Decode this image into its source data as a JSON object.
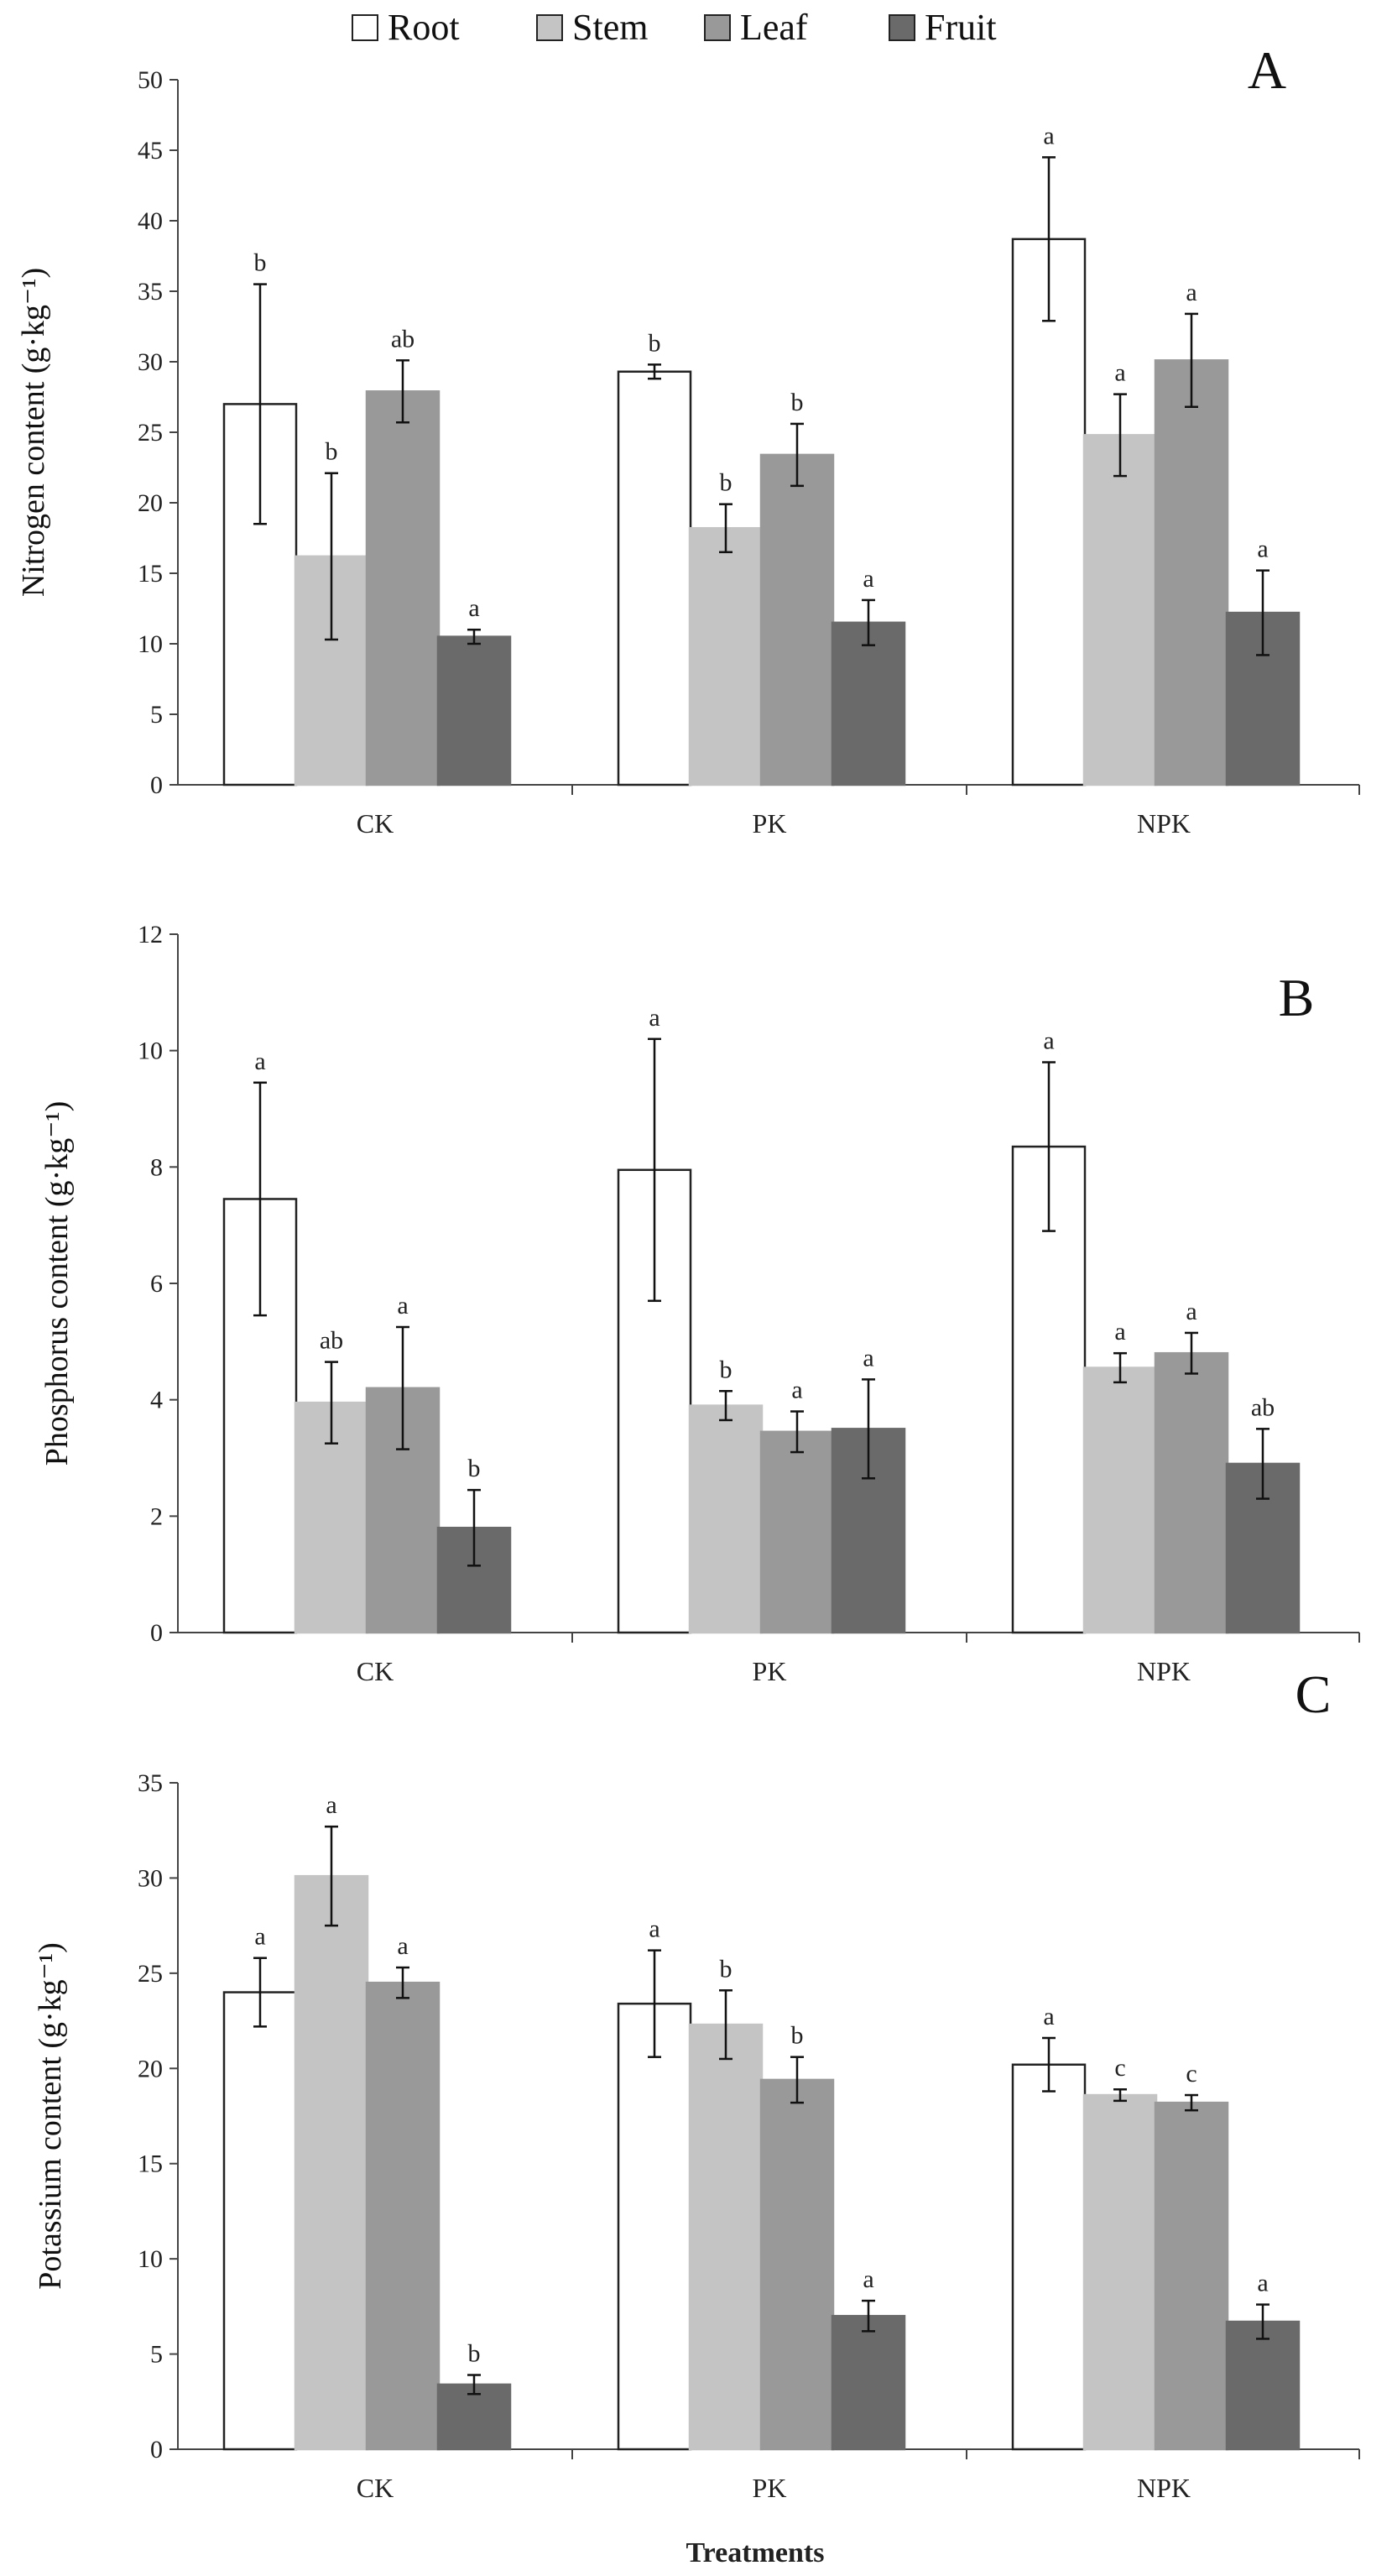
{
  "legend": [
    "Root",
    "Stem",
    "Leaf",
    "Fruit"
  ],
  "colors": {
    "Root": "#ffffff",
    "Stem": "#c4c4c4",
    "Leaf": "#999999",
    "Fruit": "#6a6a6a",
    "axis": "#444444"
  },
  "xtitle": "Treatments",
  "chart_data": [
    {
      "type": "bar",
      "panel": "A",
      "ylabel": "Nitrogen content  (g·kg⁻¹)",
      "ylim": [
        0,
        50
      ],
      "yticks": [
        0,
        5,
        10,
        15,
        20,
        25,
        30,
        35,
        40,
        45,
        50
      ],
      "categories": [
        "CK",
        "PK",
        "NPK"
      ],
      "series": [
        {
          "name": "Root",
          "values": [
            27.0,
            29.3,
            38.7
          ],
          "errors": [
            8.5,
            0.5,
            5.8
          ],
          "letters": [
            "b",
            "b",
            "a"
          ]
        },
        {
          "name": "Stem",
          "values": [
            16.2,
            18.2,
            24.8
          ],
          "errors": [
            5.9,
            1.7,
            2.9
          ],
          "letters": [
            "b",
            "b",
            "a"
          ]
        },
        {
          "name": "Leaf",
          "values": [
            27.9,
            23.4,
            30.1
          ],
          "errors": [
            2.2,
            2.2,
            3.3
          ],
          "letters": [
            "ab",
            "b",
            "a"
          ]
        },
        {
          "name": "Fruit",
          "values": [
            10.5,
            11.5,
            12.2
          ],
          "errors": [
            0.5,
            1.6,
            3.0
          ],
          "letters": [
            "a",
            "a",
            "a"
          ]
        }
      ]
    },
    {
      "type": "bar",
      "panel": "B",
      "ylabel": "Phosphorus content  (g·kg⁻¹)",
      "ylim": [
        0,
        12
      ],
      "yticks": [
        0,
        2,
        4,
        6,
        8,
        10,
        12
      ],
      "categories": [
        "CK",
        "PK",
        "NPK"
      ],
      "series": [
        {
          "name": "Root",
          "values": [
            7.45,
            7.95,
            8.35
          ],
          "errors": [
            2.0,
            2.25,
            1.45
          ],
          "letters": [
            "a",
            "a",
            "a"
          ]
        },
        {
          "name": "Stem",
          "values": [
            3.95,
            3.9,
            4.55
          ],
          "errors": [
            0.7,
            0.25,
            0.25
          ],
          "letters": [
            "ab",
            "b",
            "a"
          ]
        },
        {
          "name": "Leaf",
          "values": [
            4.2,
            3.45,
            4.8
          ],
          "errors": [
            1.05,
            0.35,
            0.35
          ],
          "letters": [
            "a",
            "a",
            "a"
          ]
        },
        {
          "name": "Fruit",
          "values": [
            1.8,
            3.5,
            2.9
          ],
          "errors": [
            0.65,
            0.85,
            0.6
          ],
          "letters": [
            "b",
            "a",
            "ab"
          ]
        }
      ]
    },
    {
      "type": "bar",
      "panel": "C",
      "ylabel": "Potassium content  (g·kg⁻¹)",
      "ylim": [
        0,
        35
      ],
      "yticks": [
        0,
        5,
        10,
        15,
        20,
        25,
        30,
        35
      ],
      "categories": [
        "CK",
        "PK",
        "NPK"
      ],
      "series": [
        {
          "name": "Root",
          "values": [
            24.0,
            23.4,
            20.2
          ],
          "errors": [
            1.8,
            2.8,
            1.4
          ],
          "letters": [
            "a",
            "a",
            "a"
          ]
        },
        {
          "name": "Stem",
          "values": [
            30.1,
            22.3,
            18.6
          ],
          "errors": [
            2.6,
            1.8,
            0.3
          ],
          "letters": [
            "a",
            "b",
            "c"
          ]
        },
        {
          "name": "Leaf",
          "values": [
            24.5,
            19.4,
            18.2
          ],
          "errors": [
            0.8,
            1.2,
            0.4
          ],
          "letters": [
            "a",
            "b",
            "c"
          ]
        },
        {
          "name": "Fruit",
          "values": [
            3.4,
            7.0,
            6.7
          ],
          "errors": [
            0.5,
            0.8,
            0.9
          ],
          "letters": [
            "b",
            "a",
            "a"
          ]
        }
      ]
    }
  ]
}
